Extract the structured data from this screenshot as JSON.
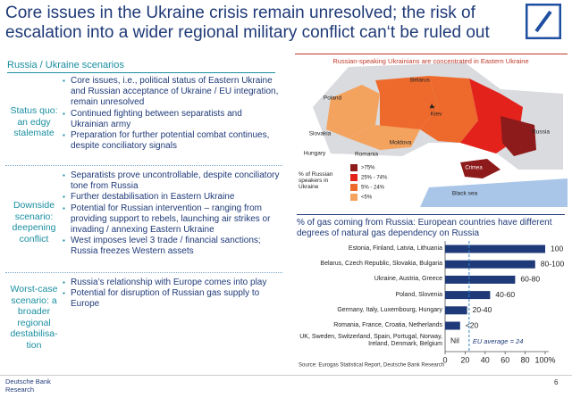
{
  "header": {
    "title": "Core issues in the Ukraine crisis remain unresolved; the risk of escalation into a wider regional military conflict can‘t be ruled out"
  },
  "scenarios": {
    "title": "Russia / Ukraine scenarios",
    "rows": [
      {
        "label": [
          "Status quo:",
          "an edgy",
          "stalemate"
        ],
        "bullets": [
          "Core issues, i.e., political status of Eastern Ukraine and Russian acceptance of Ukraine / EU integration, remain unresolved",
          "Continued fighting between separatists and Ukrainian army",
          "Preparation for further potential combat continues, despite conciliatory signals"
        ]
      },
      {
        "label": [
          "Downside",
          "scenario:",
          "deepening",
          "conflict"
        ],
        "bullets": [
          "Separatists prove uncontrollable, despite conciliatory tone from Russia",
          "Further destabilisation in Eastern Ukraine",
          "Potential for Russian intervention – ranging from providing support to rebels, launching air strikes or invading / annexing Eastern Ukraine",
          "West imposes level 3 trade / financial sanctions; Russia freezes Western assets"
        ]
      },
      {
        "label": [
          "Worst-case",
          "scenario: a",
          "broader",
          "regional",
          "destabilisa-",
          "tion"
        ],
        "bullets": [
          "Russia’s relationship with Europe comes into play",
          "Potential for disruption of Russian gas supply to Europe"
        ]
      }
    ]
  },
  "map": {
    "title": "Russian-speaking Ukrainians are concentrated in Eastern Ukraine",
    "labels": [
      "Belarus",
      "Poland",
      "Kiev",
      "Slovakia",
      "Moldova",
      "Russia",
      "Hungary",
      "Romania",
      "Crimea",
      "Black sea"
    ],
    "legend": {
      "title": "% of Russian speakers in Ukraine",
      "items": [
        {
          "label": ">75%",
          "color": "#8e1b1b"
        },
        {
          "label": "25% - 74%",
          "color": "#e3221c"
        },
        {
          "label": "5% - 24%",
          "color": "#ee6a2c"
        },
        {
          "label": "<5%",
          "color": "#f4a35f"
        }
      ]
    }
  },
  "chart_data": {
    "type": "bar",
    "orientation": "horizontal",
    "title": "% of gas coming from Russia: European countries have different degrees of natural gas dependency on Russia",
    "categories": [
      "Estonia, Finland, Latvia, Lithuania",
      "Belarus, Czech Republic, Slovakia, Bulgaria",
      "Ukraine, Austria, Greece",
      "Poland, Slovenia",
      "Germany, Italy, Luxembourg, Hungary",
      "Romania, France, Croatia, Netherlands",
      "UK, Sweden, Switzerland, Spain, Portugal, Norway, Ireland, Denmark, Belgium"
    ],
    "values": [
      100,
      90,
      70,
      45,
      22,
      15,
      0
    ],
    "value_labels": [
      "100",
      "80-100",
      "60-80",
      "40-60",
      "20-40",
      "<20",
      "Nil"
    ],
    "color": "#1f3a78",
    "xlim": [
      0,
      100
    ],
    "xticks": [
      0,
      20,
      40,
      60,
      80,
      {
        "value": 100,
        "label": "100%"
      }
    ],
    "eu_average": {
      "value": 24,
      "label": "EU average = 24"
    },
    "source": "Source: Eurogas Statistical Report, Deutsche Bank Research"
  },
  "footer": {
    "brand": [
      "Deutsche Bank",
      "Research"
    ],
    "page": "6"
  }
}
